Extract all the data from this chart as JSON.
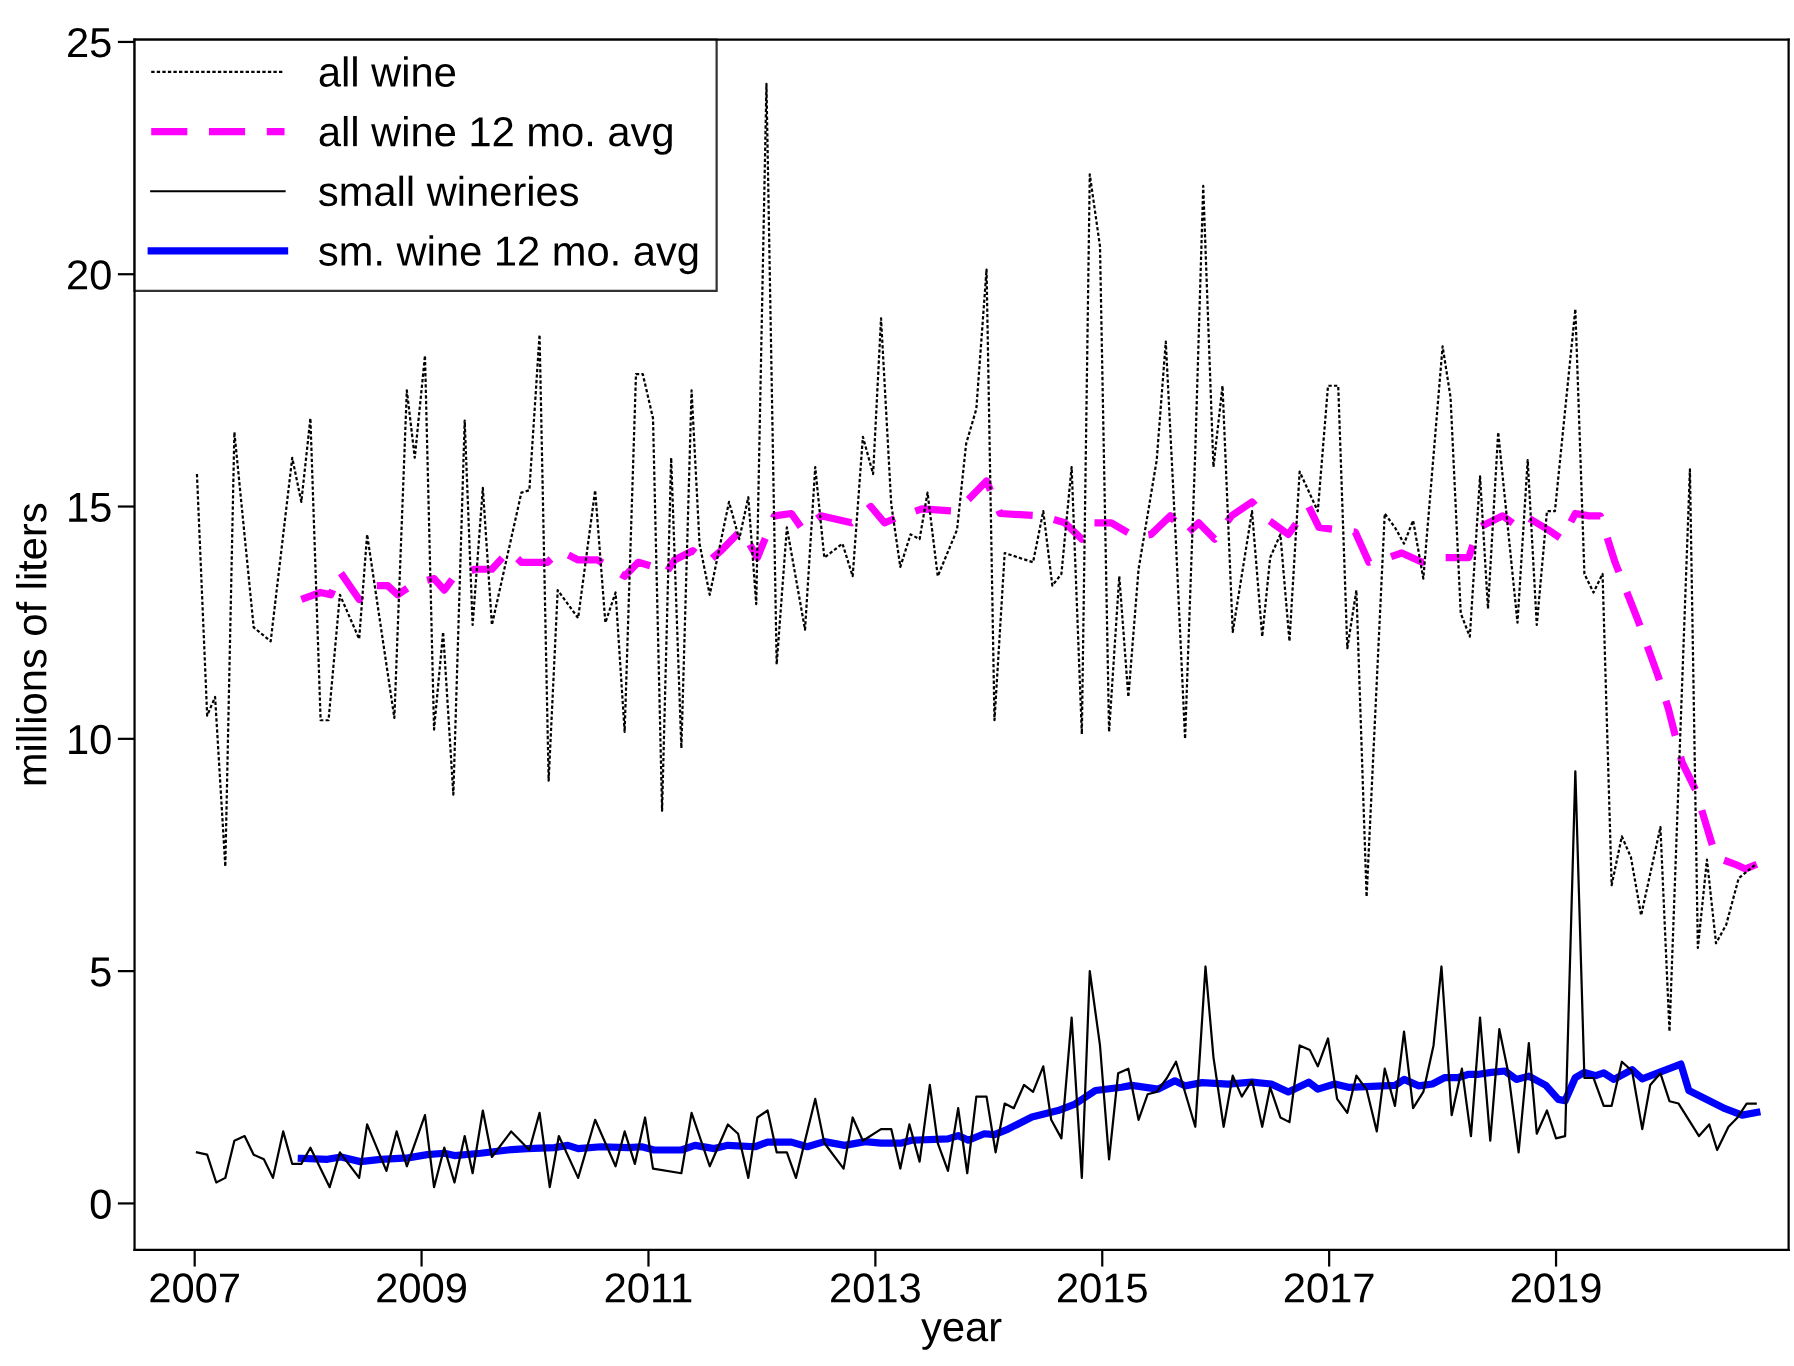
{
  "chart_data": {
    "type": "line",
    "xlabel": "year",
    "ylabel": "millions of liters",
    "xlim": [
      2006.47,
      2021.05
    ],
    "ylim": [
      -1,
      25.05
    ],
    "xticks": [
      2007,
      2009,
      2011,
      2013,
      2015,
      2017,
      2019
    ],
    "yticks": [
      0,
      5,
      10,
      15,
      20,
      25
    ],
    "grid": false,
    "legend": "top left",
    "marker": "none",
    "series": [
      {
        "name": "all wine",
        "color": "#000000",
        "line_style": "dotted",
        "x": [
          2007.02,
          2007.11,
          2007.18,
          2007.27,
          2007.35,
          2007.52,
          2007.67,
          2007.86,
          2007.94,
          2008.02,
          2008.11,
          2008.18,
          2008.28,
          2008.45,
          2008.52,
          2008.76,
          2008.87,
          2008.94,
          2009.03,
          2009.11,
          2009.19,
          2009.28,
          2009.38,
          2009.45,
          2009.54,
          2009.62,
          2009.88,
          2009.95,
          2010.04,
          2010.12,
          2010.2,
          2010.38,
          2010.53,
          2010.62,
          2010.71,
          2010.79,
          2010.89,
          2010.95,
          2011.04,
          2011.12,
          2011.2,
          2011.29,
          2011.38,
          2011.45,
          2011.54,
          2011.71,
          2011.8,
          2011.88,
          2011.95,
          2012.04,
          2012.13,
          2012.22,
          2012.38,
          2012.47,
          2012.55,
          2012.71,
          2012.8,
          2012.89,
          2012.98,
          2013.05,
          2013.14,
          2013.22,
          2013.31,
          2013.39,
          2013.46,
          2013.55,
          2013.72,
          2013.8,
          2013.89,
          2013.98,
          2014.05,
          2014.14,
          2014.39,
          2014.48,
          2014.56,
          2014.64,
          2014.73,
          2014.82,
          2014.89,
          2014.98,
          2015.06,
          2015.15,
          2015.23,
          2015.32,
          2015.48,
          2015.56,
          2015.65,
          2015.73,
          2015.82,
          2015.89,
          2015.98,
          2016.06,
          2016.15,
          2016.32,
          2016.41,
          2016.48,
          2016.57,
          2016.65,
          2016.74,
          2016.9,
          2016.99,
          2017.08,
          2017.16,
          2017.24,
          2017.33,
          2017.49,
          2017.58,
          2017.66,
          2017.74,
          2017.83,
          2018.0,
          2018.07,
          2018.16,
          2018.24,
          2018.33,
          2018.4,
          2018.49,
          2018.66,
          2018.75,
          2018.83,
          2018.92,
          2018.99,
          2019.17,
          2019.25,
          2019.33,
          2019.41,
          2019.49,
          2019.58,
          2019.66,
          2019.75,
          2019.92,
          2020.0,
          2020.18,
          2020.25,
          2020.33,
          2020.41,
          2020.5,
          2020.61,
          2020.76
        ],
        "values": [
          15.7,
          10.5,
          10.9,
          7.25,
          16.6,
          12.4,
          12.1,
          16.05,
          15.1,
          16.9,
          10.4,
          10.4,
          13.1,
          12.15,
          14.4,
          10.45,
          17.5,
          16.05,
          18.25,
          10.2,
          12.3,
          8.8,
          16.85,
          12.45,
          15.4,
          12.45,
          15.3,
          15.35,
          18.7,
          9.1,
          13.2,
          12.6,
          15.35,
          12.5,
          13.15,
          10.15,
          17.85,
          17.85,
          16.9,
          8.45,
          16.05,
          9.8,
          17.5,
          14.2,
          13.1,
          15.1,
          14.3,
          15.2,
          12.9,
          24.1,
          11.6,
          14.55,
          12.35,
          15.85,
          13.9,
          14.2,
          13.5,
          16.5,
          15.7,
          19.05,
          15.05,
          13.7,
          14.4,
          14.3,
          15.3,
          13.5,
          14.5,
          16.35,
          17.1,
          20.1,
          10.4,
          14.0,
          13.8,
          14.9,
          13.3,
          13.55,
          15.85,
          10.1,
          22.15,
          20.6,
          10.15,
          13.5,
          10.9,
          13.65,
          16.0,
          18.55,
          14.2,
          10.0,
          16.2,
          21.9,
          15.85,
          17.6,
          12.3,
          14.9,
          12.2,
          13.9,
          14.4,
          12.1,
          15.75,
          14.9,
          17.6,
          17.6,
          11.95,
          13.2,
          6.6,
          14.85,
          14.55,
          14.2,
          14.7,
          13.45,
          18.45,
          17.35,
          12.7,
          12.2,
          15.65,
          12.8,
          16.6,
          12.5,
          16.0,
          12.45,
          14.9,
          14.9,
          19.25,
          13.55,
          13.15,
          13.55,
          6.85,
          7.9,
          7.45,
          6.2,
          8.1,
          3.7,
          15.8,
          5.5,
          7.4,
          5.6,
          6.0,
          7.0,
          7.3
        ]
      },
      {
        "name": "all wine 12 mo. avg",
        "color": "#ff00ff",
        "line_style": "dashed",
        "x": [
          2007.94,
          2008.11,
          2008.2,
          2008.28,
          2008.45,
          2008.52,
          2008.7,
          2008.79,
          2008.94,
          2009.11,
          2009.2,
          2009.29,
          2009.47,
          2009.62,
          2009.77,
          2009.88,
          2010.11,
          2010.22,
          2010.38,
          2010.55,
          2010.79,
          2010.91,
          2011.05,
          2011.15,
          2011.23,
          2011.39,
          2011.52,
          2011.64,
          2011.82,
          2011.96,
          2012.11,
          2012.26,
          2012.36,
          2012.52,
          2012.79,
          2012.96,
          2013.08,
          2013.23,
          2013.41,
          2013.7,
          2013.82,
          2013.98,
          2014.1,
          2014.46,
          2014.67,
          2014.82,
          2014.89,
          2015.08,
          2015.29,
          2015.43,
          2015.6,
          2015.74,
          2015.85,
          2015.99,
          2016.14,
          2016.32,
          2016.47,
          2016.64,
          2016.82,
          2016.91,
          2017.23,
          2017.35,
          2017.52,
          2017.64,
          2017.82,
          2018.0,
          2018.23,
          2018.32,
          2018.53,
          2018.67,
          2018.76,
          2018.93,
          2019.05,
          2019.17,
          2019.29,
          2019.39,
          2019.52,
          2019.73,
          2019.9,
          2019.99,
          2020.11,
          2020.23,
          2020.41,
          2020.58,
          2020.67,
          2020.77
        ],
        "values": [
          13.0,
          13.15,
          13.1,
          13.6,
          13.0,
          13.3,
          13.3,
          13.1,
          13.35,
          13.45,
          13.2,
          13.5,
          13.65,
          13.65,
          14.05,
          13.8,
          13.8,
          14.05,
          13.85,
          13.85,
          13.5,
          13.8,
          13.7,
          13.55,
          13.85,
          14.05,
          13.8,
          14.05,
          14.5,
          13.9,
          14.8,
          14.85,
          14.5,
          14.8,
          14.65,
          15.0,
          14.65,
          14.8,
          14.95,
          14.9,
          15.15,
          15.55,
          14.85,
          14.8,
          14.65,
          14.3,
          14.65,
          14.65,
          14.35,
          14.4,
          14.8,
          14.4,
          14.65,
          14.3,
          14.8,
          15.1,
          14.7,
          14.4,
          15.0,
          14.55,
          14.45,
          13.8,
          13.9,
          14.0,
          13.8,
          13.9,
          13.9,
          14.55,
          14.8,
          14.55,
          14.75,
          14.5,
          14.3,
          14.85,
          14.8,
          14.8,
          13.8,
          12.5,
          11.35,
          10.65,
          9.5,
          8.9,
          7.45,
          7.3,
          7.2,
          7.3
        ]
      },
      {
        "name": "small wineries",
        "color": "#000000",
        "line_style": "solid",
        "x": [
          2007.02,
          2007.11,
          2007.19,
          2007.27,
          2007.35,
          2007.44,
          2007.52,
          2007.61,
          2007.69,
          2007.78,
          2007.86,
          2007.94,
          2008.02,
          2008.19,
          2008.28,
          2008.45,
          2008.52,
          2008.69,
          2008.78,
          2008.87,
          2009.03,
          2009.11,
          2009.2,
          2009.29,
          2009.38,
          2009.45,
          2009.54,
          2009.62,
          2009.79,
          2009.95,
          2010.04,
          2010.13,
          2010.21,
          2010.38,
          2010.53,
          2010.71,
          2010.79,
          2010.88,
          2010.97,
          2011.04,
          2011.29,
          2011.38,
          2011.54,
          2011.7,
          2011.79,
          2011.88,
          2011.96,
          2012.05,
          2012.13,
          2012.22,
          2012.3,
          2012.47,
          2012.55,
          2012.72,
          2012.8,
          2012.89,
          2013.05,
          2013.14,
          2013.22,
          2013.3,
          2013.39,
          2013.48,
          2013.55,
          2013.64,
          2013.73,
          2013.81,
          2013.89,
          2013.98,
          2014.06,
          2014.14,
          2014.22,
          2014.31,
          2014.39,
          2014.48,
          2014.55,
          2014.64,
          2014.73,
          2014.82,
          2014.89,
          2014.98,
          2015.06,
          2015.14,
          2015.23,
          2015.32,
          2015.4,
          2015.48,
          2015.57,
          2015.65,
          2015.82,
          2015.91,
          2015.98,
          2016.07,
          2016.15,
          2016.23,
          2016.32,
          2016.41,
          2016.48,
          2016.57,
          2016.65,
          2016.74,
          2016.83,
          2016.9,
          2016.99,
          2017.07,
          2017.16,
          2017.24,
          2017.33,
          2017.42,
          2017.49,
          2017.58,
          2017.66,
          2017.74,
          2017.83,
          2017.92,
          2017.99,
          2018.08,
          2018.17,
          2018.25,
          2018.33,
          2018.42,
          2018.5,
          2018.58,
          2018.67,
          2018.76,
          2018.83,
          2018.92,
          2019.0,
          2019.08,
          2019.17,
          2019.25,
          2019.33,
          2019.42,
          2019.49,
          2019.58,
          2019.67,
          2019.76,
          2019.83,
          2019.92,
          2020.0,
          2020.08,
          2020.17,
          2020.26,
          2020.35,
          2020.42,
          2020.52,
          2020.6,
          2020.68,
          2020.76
        ],
        "values": [
          1.1,
          1.05,
          0.45,
          0.55,
          1.35,
          1.45,
          1.05,
          0.95,
          0.55,
          1.55,
          0.85,
          0.85,
          1.2,
          0.35,
          1.1,
          0.55,
          1.7,
          0.7,
          1.55,
          0.8,
          1.9,
          0.35,
          1.2,
          0.45,
          1.45,
          0.65,
          2.0,
          1.0,
          1.55,
          1.15,
          1.95,
          0.35,
          1.45,
          0.55,
          1.8,
          0.8,
          1.55,
          0.85,
          1.85,
          0.75,
          0.65,
          1.95,
          0.8,
          1.7,
          1.5,
          0.55,
          1.85,
          2.0,
          1.1,
          1.1,
          0.55,
          2.25,
          1.3,
          0.75,
          1.85,
          1.35,
          1.6,
          1.6,
          0.75,
          1.7,
          0.9,
          2.55,
          1.3,
          0.7,
          2.05,
          0.65,
          2.3,
          2.3,
          1.1,
          2.15,
          2.05,
          2.55,
          2.4,
          2.95,
          1.8,
          1.4,
          4.0,
          0.55,
          5.0,
          3.4,
          0.95,
          2.8,
          2.9,
          1.8,
          2.35,
          2.4,
          2.7,
          3.05,
          1.65,
          5.1,
          3.15,
          1.65,
          2.75,
          2.3,
          2.65,
          1.65,
          2.5,
          1.85,
          1.75,
          3.4,
          3.3,
          2.95,
          3.55,
          2.25,
          1.95,
          2.75,
          2.45,
          1.55,
          2.9,
          2.1,
          3.7,
          2.05,
          2.4,
          3.4,
          5.1,
          1.9,
          2.9,
          1.45,
          4.0,
          1.35,
          3.75,
          2.8,
          1.1,
          3.45,
          1.5,
          2.0,
          1.4,
          1.45,
          9.3,
          2.7,
          2.7,
          2.1,
          2.1,
          3.05,
          2.85,
          1.6,
          2.55,
          2.8,
          2.2,
          2.15,
          1.8,
          1.45,
          1.7,
          1.15,
          1.65,
          1.85,
          2.15,
          2.15
        ]
      },
      {
        "name": "sm. wine 12 mo. avg",
        "color": "#0000ff",
        "line_style": "solid",
        "x": [
          2007.94,
          2008.17,
          2008.29,
          2008.46,
          2008.64,
          2008.88,
          2009.05,
          2009.2,
          2009.29,
          2009.52,
          2009.76,
          2009.93,
          2010.17,
          2010.29,
          2010.38,
          2010.58,
          2010.82,
          2010.94,
          2011.05,
          2011.29,
          2011.41,
          2011.58,
          2011.7,
          2011.94,
          2012.05,
          2012.26,
          2012.4,
          2012.55,
          2012.73,
          2012.91,
          2013.05,
          2013.23,
          2013.32,
          2013.64,
          2013.73,
          2013.82,
          2013.96,
          2014.05,
          2014.17,
          2014.38,
          2014.61,
          2014.76,
          2014.94,
          2015.17,
          2015.26,
          2015.49,
          2015.64,
          2015.73,
          2015.88,
          2016.11,
          2016.32,
          2016.49,
          2016.64,
          2016.82,
          2016.9,
          2017.05,
          2017.17,
          2017.58,
          2017.66,
          2017.79,
          2017.91,
          2018.02,
          2018.14,
          2018.23,
          2018.32,
          2018.43,
          2018.55,
          2018.65,
          2018.76,
          2018.91,
          2019.02,
          2019.08,
          2019.17,
          2019.25,
          2019.35,
          2019.42,
          2019.51,
          2019.67,
          2019.76,
          2020.1,
          2020.17,
          2020.35,
          2020.49,
          2020.64,
          2020.77
        ],
        "values": [
          0.97,
          0.95,
          1.0,
          0.9,
          0.95,
          0.98,
          1.05,
          1.08,
          1.03,
          1.08,
          1.15,
          1.18,
          1.2,
          1.25,
          1.18,
          1.22,
          1.2,
          1.22,
          1.15,
          1.15,
          1.25,
          1.18,
          1.25,
          1.22,
          1.32,
          1.32,
          1.22,
          1.33,
          1.25,
          1.33,
          1.3,
          1.3,
          1.36,
          1.39,
          1.46,
          1.36,
          1.5,
          1.48,
          1.6,
          1.86,
          2.0,
          2.14,
          2.43,
          2.5,
          2.54,
          2.46,
          2.64,
          2.53,
          2.6,
          2.57,
          2.61,
          2.57,
          2.4,
          2.61,
          2.46,
          2.57,
          2.5,
          2.54,
          2.67,
          2.53,
          2.57,
          2.71,
          2.71,
          2.78,
          2.78,
          2.82,
          2.85,
          2.67,
          2.74,
          2.54,
          2.24,
          2.21,
          2.71,
          2.82,
          2.75,
          2.81,
          2.67,
          2.88,
          2.68,
          3.0,
          2.43,
          2.21,
          2.04,
          1.9,
          1.96
        ]
      }
    ]
  }
}
